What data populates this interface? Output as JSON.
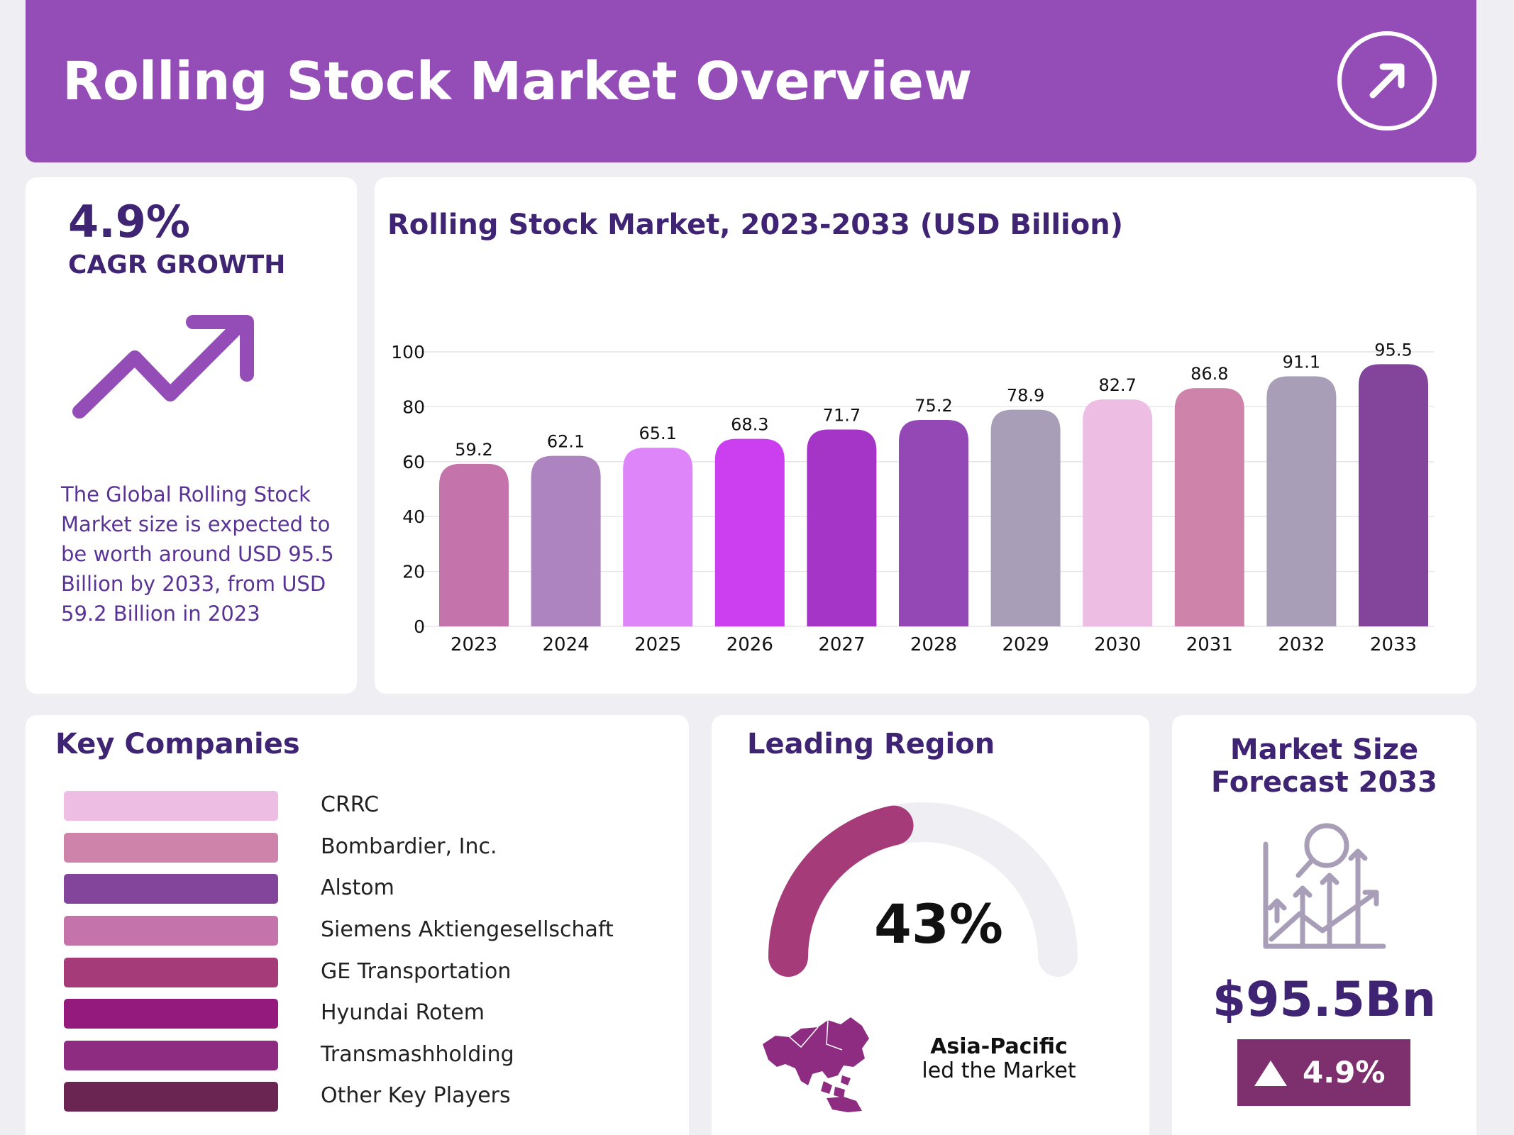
{
  "header": {
    "title": "Rolling Stock Market Overview",
    "icon": "arrow-up-right-icon"
  },
  "cagr": {
    "value": "4.9%",
    "label": "CAGR GROWTH",
    "icon": "trend-up-arrow-icon",
    "description": "The Global Rolling Stock Market size is expected to be worth around USD 95.5 Billion by 2033, from USD 59.2 Billion in 2023"
  },
  "chart_data": {
    "type": "bar",
    "title": "Rolling Stock Market, 2023-2033 (USD Billion)",
    "xlabel": "",
    "ylabel": "",
    "ylim": [
      0,
      100
    ],
    "yticks": [
      0,
      20,
      40,
      60,
      80,
      100
    ],
    "grid": true,
    "categories": [
      "2023",
      "2024",
      "2025",
      "2026",
      "2027",
      "2028",
      "2029",
      "2030",
      "2031",
      "2032",
      "2033"
    ],
    "values": [
      59.2,
      62.1,
      65.1,
      68.3,
      71.7,
      75.2,
      78.9,
      82.7,
      86.8,
      91.1,
      95.5
    ],
    "value_labels": [
      "59.2",
      "62.1",
      "65.1",
      "68.3",
      "71.7",
      "75.2",
      "78.9",
      "82.7",
      "86.8",
      "91.1",
      "95.5"
    ],
    "colors": [
      "#c474ab",
      "#ad83c0",
      "#df85fa",
      "#cb3ff0",
      "#a535c6",
      "#9448b6",
      "#a89eb8",
      "#edbde4",
      "#cd83aa",
      "#a89eb8",
      "#83449b"
    ]
  },
  "companies": {
    "title": "Key Companies",
    "items": [
      {
        "name": "CRRC",
        "color": "#edbde4"
      },
      {
        "name": "Bombardier, Inc.",
        "color": "#cd83aa"
      },
      {
        "name": "Alstom",
        "color": "#83449b"
      },
      {
        "name": "Siemens Aktiengesellschaft",
        "color": "#c474ab"
      },
      {
        "name": "GE Transportation",
        "color": "#a53c79"
      },
      {
        "name": "Hyundai Rotem",
        "color": "#951a7e"
      },
      {
        "name": "Transmashholding",
        "color": "#8d2c81"
      },
      {
        "name": "Other Key Players",
        "color": "#6a2553"
      }
    ]
  },
  "region": {
    "title": "Leading Region",
    "share_label": "43%",
    "share_fraction": 0.43,
    "gauge_color": "#a53c79",
    "track_color": "#efeef3",
    "map_icon": "asia-pacific-map-icon",
    "name": "Asia-Pacific",
    "subtitle": "led the Market"
  },
  "forecast": {
    "title_line1": "Market Size",
    "title_line2": "Forecast 2033",
    "icon": "growth-analytics-icon",
    "value": "$95.5Bn",
    "badge_icon": "triangle-up-icon",
    "badge_value": "4.9%"
  }
}
